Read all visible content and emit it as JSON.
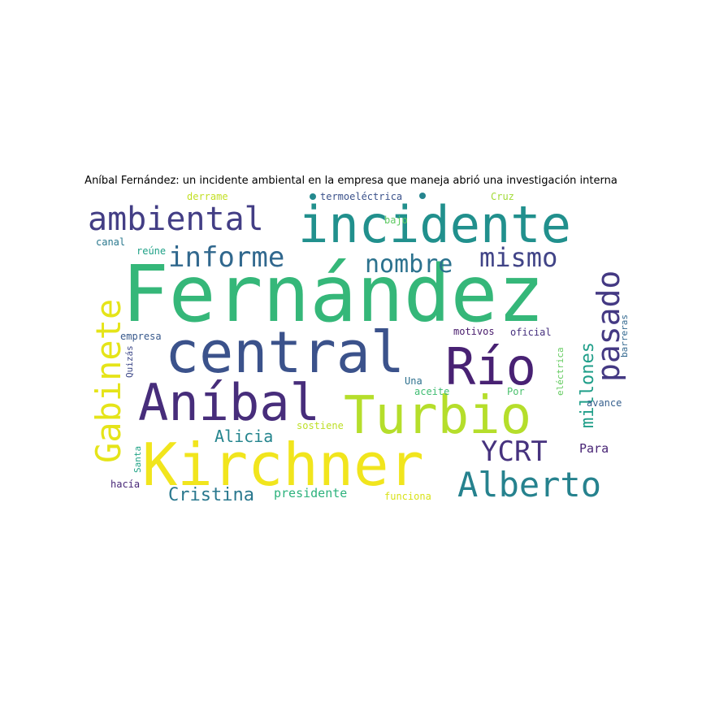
{
  "title": "Aníbal Fernández: un incidente ambiental en la empresa que maneja abrió una investigación interna",
  "words": [
    {
      "text": "Fernández",
      "color": "#35b779"
    },
    {
      "text": "incidente",
      "color": "#21908d"
    },
    {
      "text": "central",
      "color": "#3b528b"
    },
    {
      "text": "Kirchner",
      "color": "#f1e51d"
    },
    {
      "text": "Turbio",
      "color": "#b5de2b"
    },
    {
      "text": "Aníbal",
      "color": "#472d7b"
    },
    {
      "text": "Río",
      "color": "#482173"
    },
    {
      "text": "ambiental",
      "color": "#433e85"
    },
    {
      "text": "Gabinete",
      "color": "#e5e419"
    },
    {
      "text": "Alberto",
      "color": "#26828e"
    },
    {
      "text": "informe",
      "color": "#31688e"
    },
    {
      "text": "nombre",
      "color": "#2c728e"
    },
    {
      "text": "mismo",
      "color": "#414487"
    },
    {
      "text": "pasado",
      "color": "#443983"
    },
    {
      "text": "YCRT",
      "color": "#46327e"
    },
    {
      "text": "millones",
      "color": "#1f9e89"
    },
    {
      "text": "Alicia",
      "color": "#25858e"
    },
    {
      "text": "Cristina",
      "color": "#2a788e"
    },
    {
      "text": "presidente",
      "color": "#2db27d"
    },
    {
      "text": "Para",
      "color": "#482475"
    },
    {
      "text": "sostiene",
      "color": "#bddf26"
    },
    {
      "text": "funciona",
      "color": "#d8e219"
    },
    {
      "text": "hacía",
      "color": "#482878"
    },
    {
      "text": "Santa",
      "color": "#20a386"
    },
    {
      "text": "Quizás",
      "color": "#3e4989"
    },
    {
      "text": "empresa",
      "color": "#38598c"
    },
    {
      "text": "motivos",
      "color": "#481a6c"
    },
    {
      "text": "oficial",
      "color": "#46307e"
    },
    {
      "text": "eléctrica",
      "color": "#63cb5f"
    },
    {
      "text": "barreras",
      "color": "#31678e"
    },
    {
      "text": "avance",
      "color": "#355f8d"
    },
    {
      "text": "Por",
      "color": "#4ac16d"
    },
    {
      "text": "aceite",
      "color": "#40bd72"
    },
    {
      "text": "Una",
      "color": "#2d708e"
    },
    {
      "text": "derrame",
      "color": "#c2df23"
    },
    {
      "text": "termoeléctrica",
      "color": "#3b528b"
    },
    {
      "text": "Cruz",
      "color": "#a2da37"
    },
    {
      "text": "bajo",
      "color": "#5ec962"
    },
    {
      "text": "canal",
      "color": "#2a788e"
    },
    {
      "text": "reúne",
      "color": "#1fa187"
    }
  ],
  "dots": [
    {
      "color": "#23898e"
    },
    {
      "color": "#25848e"
    }
  ]
}
